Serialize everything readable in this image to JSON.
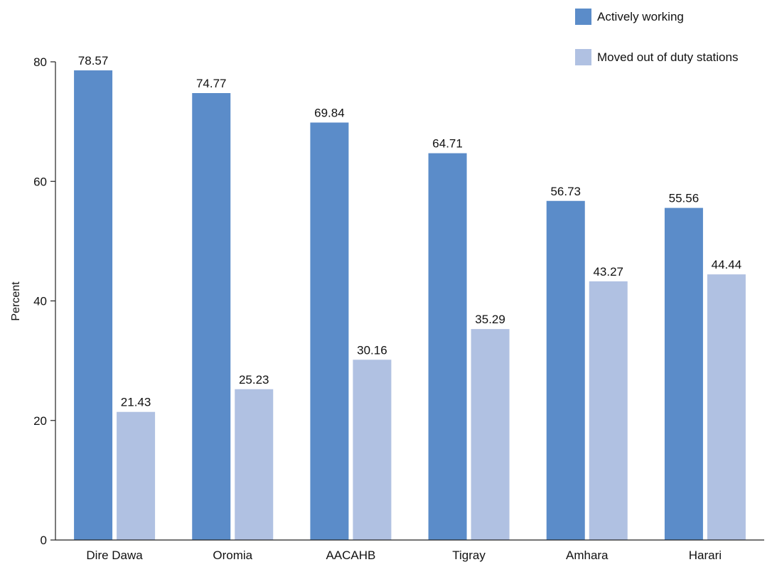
{
  "chart_data": {
    "type": "bar",
    "title": "",
    "xlabel": "",
    "ylabel": "Percent",
    "ylim": [
      0,
      80
    ],
    "yticks": [
      0,
      20,
      40,
      60,
      80
    ],
    "grid": false,
    "legend_position": "top-right",
    "categories": [
      "Dire Dawa",
      "Oromia",
      "AACAHB",
      "Tigray",
      "Amhara",
      "Harari"
    ],
    "series": [
      {
        "name": "Actively working",
        "color": "#5b8cc9",
        "values": [
          78.57,
          74.77,
          69.84,
          64.71,
          56.73,
          55.56
        ]
      },
      {
        "name": "Moved out of duty stations",
        "color": "#b0c1e2",
        "values": [
          21.43,
          25.23,
          30.16,
          35.29,
          43.27,
          44.44
        ]
      }
    ]
  }
}
